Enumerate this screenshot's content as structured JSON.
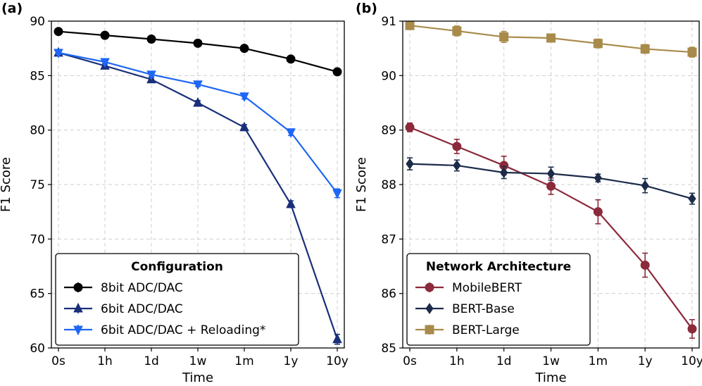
{
  "chart_data": [
    {
      "type": "line",
      "panel_label": "(a)",
      "title": "",
      "xlabel": "Time",
      "ylabel": "F1 Score",
      "categories": [
        "0s",
        "1h",
        "1d",
        "1w",
        "1m",
        "1y",
        "10y"
      ],
      "ylim": [
        60,
        90
      ],
      "yticks": [
        60,
        65,
        70,
        75,
        80,
        85,
        90
      ],
      "grid": true,
      "legend": {
        "title": "Configuration",
        "placement": "bottom-left"
      },
      "series": [
        {
          "name": "8bit ADC/DAC",
          "color": "#000000",
          "marker": "circle",
          "values": [
            89.05,
            88.7,
            88.35,
            87.97,
            87.5,
            86.52,
            85.35
          ],
          "errors": [
            0.1,
            0.1,
            0.1,
            0.1,
            0.1,
            0.1,
            0.1
          ]
        },
        {
          "name": "6bit ADC/DAC",
          "color": "#1a2f7a",
          "marker": "triangle-up",
          "values": [
            87.1,
            85.9,
            84.65,
            82.5,
            80.25,
            73.2,
            60.8
          ],
          "errors": [
            0.15,
            0.2,
            0.2,
            0.2,
            0.25,
            0.3,
            0.45
          ]
        },
        {
          "name": "6bit ADC/DAC + Reloading*",
          "color": "#1e66f5",
          "marker": "triangle-down",
          "values": [
            87.1,
            86.25,
            85.1,
            84.2,
            83.1,
            79.8,
            74.2
          ],
          "errors": [
            0.15,
            0.2,
            0.2,
            0.2,
            0.25,
            0.3,
            0.4
          ]
        }
      ]
    },
    {
      "type": "line",
      "panel_label": "(b)",
      "title": "",
      "xlabel": "Time",
      "ylabel": "F1 Score",
      "categories": [
        "0s",
        "1h",
        "1d",
        "1w",
        "1m",
        "1y",
        "10y"
      ],
      "ylim": [
        85,
        91
      ],
      "yticks": [
        85,
        86,
        87,
        88,
        89,
        90,
        91
      ],
      "grid": true,
      "legend": {
        "title": "Network Architecture",
        "placement": "bottom-left"
      },
      "series": [
        {
          "name": "MobileBERT",
          "color": "#8b2a3a",
          "marker": "circle",
          "values": [
            89.05,
            88.7,
            88.35,
            87.97,
            87.5,
            86.52,
            85.35
          ],
          "errors": [
            0.08,
            0.13,
            0.17,
            0.15,
            0.22,
            0.22,
            0.17
          ]
        },
        {
          "name": "BERT-Base",
          "color": "#1c2b4a",
          "marker": "diamond",
          "values": [
            88.38,
            88.35,
            88.22,
            88.2,
            88.12,
            87.98,
            87.74
          ],
          "errors": [
            0.11,
            0.1,
            0.11,
            0.12,
            0.07,
            0.13,
            0.1
          ]
        },
        {
          "name": "BERT-Large",
          "color": "#a88b4a",
          "marker": "square",
          "values": [
            90.92,
            90.82,
            90.71,
            90.69,
            90.59,
            90.49,
            90.43
          ],
          "errors": [
            0.07,
            0.09,
            0.1,
            0.05,
            0.08,
            0.08,
            0.09
          ]
        }
      ]
    }
  ]
}
